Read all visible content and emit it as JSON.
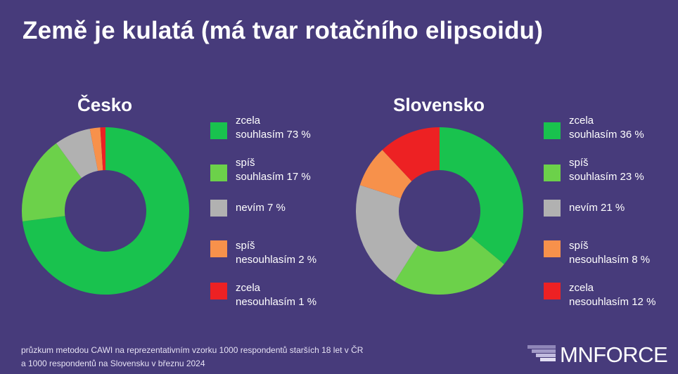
{
  "title": "Země je kulatá (má tvar rotačního elipsoidu)",
  "footer": "průzkum metodou CAWI na reprezentativním vzorku 1000 respondentů starších 18 let v ČR\na 1000 respondentů na Slovensku v březnu 2024",
  "logo_text": "MNFORCE",
  "colors": {
    "background": "#473b7b",
    "zcela_souhlasim": "#19c24e",
    "spis_souhlasim": "#6cd14a",
    "nevim": "#b1b1b1",
    "spis_nesouhlasim": "#f7914b",
    "zcela_nesouhlasim": "#ed2123"
  },
  "chart_data": [
    {
      "type": "pie",
      "title": "Česko",
      "categories": [
        "zcela\nsouhlasím 73 %",
        "spíš\nsouhlasím 17 %",
        "nevím 7 %",
        "spíš\nnesouhlasím 2 %",
        "zcela\nnesouhlasím 1 %"
      ],
      "values": [
        73,
        17,
        7,
        2,
        1
      ],
      "colors": [
        "#19c24e",
        "#6cd14a",
        "#b1b1b1",
        "#f7914b",
        "#ed2123"
      ],
      "legend": "right"
    },
    {
      "type": "pie",
      "title": "Slovensko",
      "categories": [
        "zcela\nsouhlasím 36 %",
        "spíš\nsouhlasím 23 %",
        "nevím 21 %",
        "spíš\nnesouhlasím 8 %",
        "zcela\nnesouhlasím 12 %"
      ],
      "values": [
        36,
        23,
        21,
        8,
        12
      ],
      "colors": [
        "#19c24e",
        "#6cd14a",
        "#b1b1b1",
        "#f7914b",
        "#ed2123"
      ],
      "legend": "right"
    }
  ]
}
